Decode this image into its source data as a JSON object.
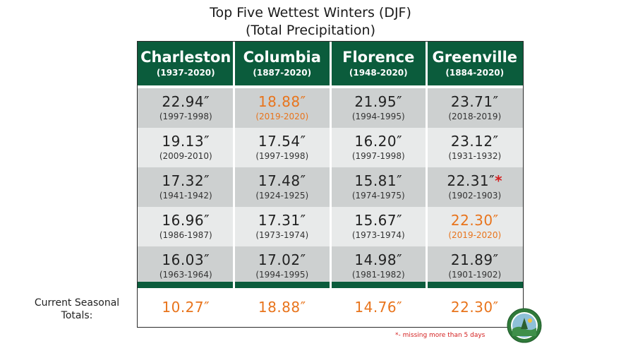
{
  "title_line1": "Top Five Wettest Winters (DJF)",
  "title_line2": "(Total Precipitation)",
  "colors": {
    "header_green": "#0b5c3c",
    "highlight_orange": "#e8741c",
    "footnote_red": "#d42020",
    "row_dark": "#cdd0d0",
    "row_light": "#e8eaea"
  },
  "columns": [
    {
      "name": "Charleston",
      "years": "(1937-2020)"
    },
    {
      "name": "Columbia",
      "years": "(1887-2020)"
    },
    {
      "name": "Florence",
      "years": "(1948-2020)"
    },
    {
      "name": "Greenville",
      "years": "(1884-2020)"
    }
  ],
  "rows": [
    [
      {
        "value": "22.94″",
        "years": "(1997-1998)",
        "highlight": false
      },
      {
        "value": "18.88″",
        "years": "(2019-2020)",
        "highlight": true
      },
      {
        "value": "21.95″",
        "years": "(1994-1995)",
        "highlight": false
      },
      {
        "value": "23.71″",
        "years": "(2018-2019)",
        "highlight": false
      }
    ],
    [
      {
        "value": "19.13″",
        "years": "(2009-2010)",
        "highlight": false
      },
      {
        "value": "17.54″",
        "years": "(1997-1998)",
        "highlight": false
      },
      {
        "value": "16.20″",
        "years": "(1997-1998)",
        "highlight": false
      },
      {
        "value": "23.12″",
        "years": "(1931-1932)",
        "highlight": false
      }
    ],
    [
      {
        "value": "17.32″",
        "years": "(1941-1942)",
        "highlight": false
      },
      {
        "value": "17.48″",
        "years": "(1924-1925)",
        "highlight": false
      },
      {
        "value": "15.81″",
        "years": "(1974-1975)",
        "highlight": false
      },
      {
        "value": "22.31″",
        "years": "(1902-1903)",
        "highlight": false,
        "asterisk": "*"
      }
    ],
    [
      {
        "value": "16.96″",
        "years": "(1986-1987)",
        "highlight": false
      },
      {
        "value": "17.31″",
        "years": "(1973-1974)",
        "highlight": false
      },
      {
        "value": "15.67″",
        "years": "(1973-1974)",
        "highlight": false
      },
      {
        "value": "22.30″",
        "years": "(2019-2020)",
        "highlight": true
      }
    ],
    [
      {
        "value": "16.03″",
        "years": "(1963-1964)",
        "highlight": false
      },
      {
        "value": "17.02″",
        "years": "(1994-1995)",
        "highlight": false
      },
      {
        "value": "14.98″",
        "years": "(1981-1982)",
        "highlight": false
      },
      {
        "value": "21.89″",
        "years": "(1901-1902)",
        "highlight": false
      }
    ]
  ],
  "current_label_line1": "Current Seasonal",
  "current_label_line2": "Totals:",
  "current_totals": [
    "10.27″",
    "18.88″",
    "14.76″",
    "22.30″"
  ],
  "footnote": "*- missing more than 5 days",
  "chart_data": {
    "type": "table",
    "title": "Top Five Wettest Winters (DJF)",
    "subtitle": "(Total Precipitation)",
    "columns": [
      "Charleston (1937-2020)",
      "Columbia (1887-2020)",
      "Florence (1948-2020)",
      "Greenville (1884-2020)"
    ],
    "rows": [
      [
        "22.94″ (1997-1998)",
        "18.88″ (2019-2020)",
        "21.95″ (1994-1995)",
        "23.71″ (2018-2019)"
      ],
      [
        "19.13″ (2009-2010)",
        "17.54″ (1997-1998)",
        "16.20″ (1997-1998)",
        "23.12″ (1931-1932)"
      ],
      [
        "17.32″ (1941-1942)",
        "17.48″ (1924-1925)",
        "15.81″ (1974-1975)",
        "22.31″* (1902-1903)"
      ],
      [
        "16.96″ (1986-1987)",
        "17.31″ (1973-1974)",
        "15.67″ (1973-1974)",
        "22.30″ (2019-2020)"
      ],
      [
        "16.03″ (1963-1964)",
        "17.02″ (1994-1995)",
        "14.98″ (1981-1982)",
        "21.89″ (1901-1902)"
      ]
    ],
    "current_seasonal_totals": [
      "10.27″",
      "18.88″",
      "14.76″",
      "22.30″"
    ],
    "footnote": "*- missing more than 5 days"
  }
}
